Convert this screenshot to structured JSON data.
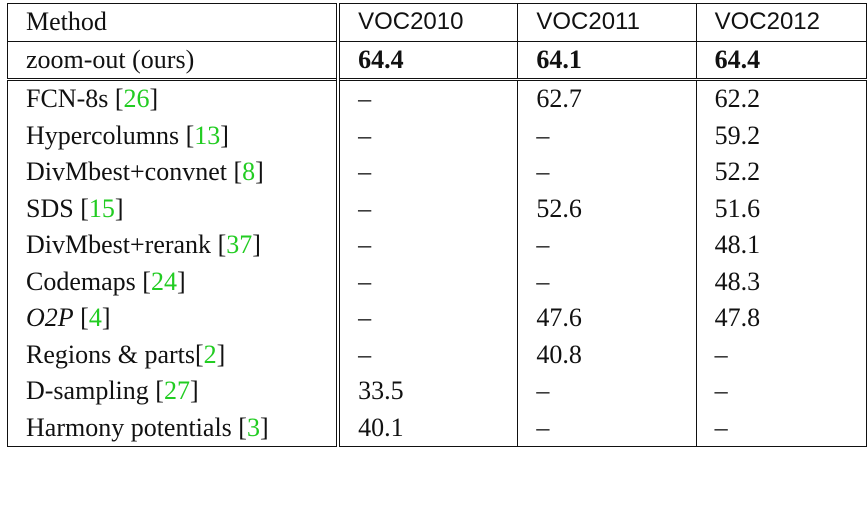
{
  "table": {
    "headers": [
      "Method",
      "VOC2010",
      "VOC2011",
      "VOC2012"
    ],
    "ours": {
      "method": "zoom-out (ours)",
      "values": [
        "64.4",
        "64.1",
        "64.4"
      ]
    },
    "rows": [
      {
        "method": "FCN-8s ",
        "cite": "26",
        "values": [
          "–",
          "62.7",
          "62.2"
        ]
      },
      {
        "method": "Hypercolumns ",
        "cite": "13",
        "values": [
          "–",
          "–",
          "59.2"
        ]
      },
      {
        "method": "DivMbest+convnet ",
        "cite": "8",
        "values": [
          "–",
          "–",
          "52.2"
        ]
      },
      {
        "method": "SDS ",
        "cite": "15",
        "values": [
          "–",
          "52.6",
          "51.6"
        ]
      },
      {
        "method": "DivMbest+rerank ",
        "cite": "37",
        "values": [
          "–",
          "–",
          "48.1"
        ]
      },
      {
        "method": "Codemaps ",
        "cite": "24",
        "values": [
          "–",
          "–",
          "48.3"
        ]
      },
      {
        "method": "O2P",
        "cite": "4",
        "values": [
          "–",
          "47.6",
          "47.8"
        ]
      },
      {
        "method": "Regions & parts",
        "cite": "2",
        "values": [
          "–",
          "40.8",
          "–"
        ]
      },
      {
        "method": "D-sampling ",
        "cite": "27",
        "values": [
          "33.5",
          "–",
          "–"
        ]
      },
      {
        "method": "Harmony potentials ",
        "cite": "3",
        "values": [
          "40.1",
          "–",
          "–"
        ]
      }
    ]
  },
  "colors": {
    "citation": "#22cc22",
    "rule": "#111111"
  }
}
